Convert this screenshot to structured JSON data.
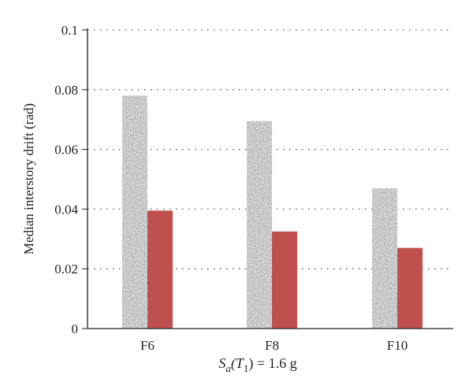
{
  "chart_data": {
    "type": "bar",
    "categories": [
      "F6",
      "F8",
      "F10"
    ],
    "series": [
      {
        "color": "#888888",
        "pattern": "speckled-gray-texture",
        "values": [
          0.078,
          0.0695,
          0.047
        ]
      },
      {
        "color": "#c0504d",
        "values": [
          0.0395,
          0.0325,
          0.027
        ]
      }
    ],
    "ylabel": "Median interstory drift (rad)",
    "xlabel": {
      "prefix": "S",
      "sub_a": "a",
      "open": "(T",
      "sub_1": "1",
      "rest": ") = 1.6 g"
    },
    "ylim": [
      0,
      0.1
    ],
    "yticks": [
      "0",
      "0.02",
      "0.04",
      "0.06",
      "0.08",
      "0.1"
    ],
    "grid": "horizontal-dotted"
  }
}
